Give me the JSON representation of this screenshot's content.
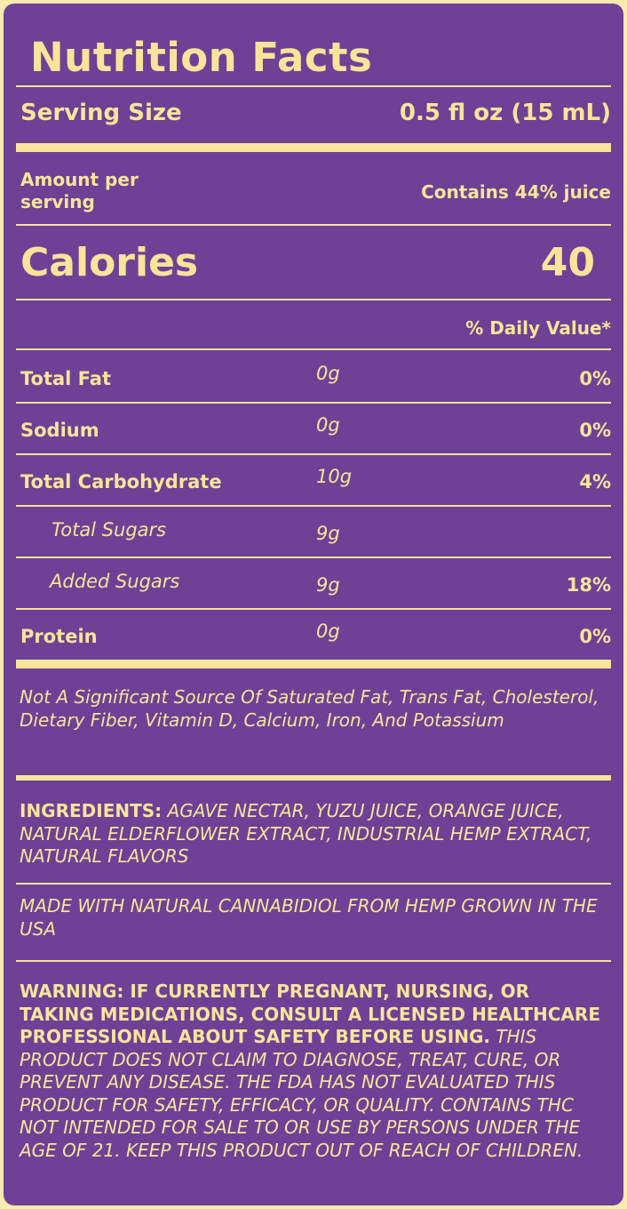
{
  "title": "Nutrition Facts",
  "serving": {
    "label": "Serving Size",
    "value": "0.5 fl oz (15 mL)"
  },
  "amount_per_serving": "Amount per serving",
  "juice": "Contains 44% juice",
  "calories": {
    "label": "Calories",
    "value": "40"
  },
  "daily_value_header": "% Daily Value*",
  "nutrients": [
    {
      "name": "Total Fat",
      "amount": "0g",
      "dv": "0%"
    },
    {
      "name": "Sodium",
      "amount": "0g",
      "dv": "0%"
    },
    {
      "name": "Total Carbohydrate",
      "amount": "10g",
      "dv": "4%"
    },
    {
      "name": "Total Sugars",
      "amount": "9g",
      "dv": ""
    },
    {
      "name": "Added Sugars",
      "amount": "9g",
      "dv": "18%"
    },
    {
      "name": "Protein",
      "amount": "0g",
      "dv": "0%"
    }
  ],
  "not_significant": "Not A Significant Source Of Saturated Fat, Trans Fat, Cholesterol, Dietary Fiber, Vitamin D, Calcium, Iron, And Potassium",
  "ingredients": {
    "label": "INGREDIENTS:",
    "text": "AGAVE NECTAR, YUZU JUICE, ORANGE JUICE, NATURAL ELDERFLOWER EXTRACT, INDUSTRIAL HEMP EXTRACT, NATURAL FLAVORS"
  },
  "made_with": "MADE WITH NATURAL CANNABIDIOL FROM HEMP GROWN IN THE USA",
  "warning": {
    "bold": "WARNING: IF CURRENTLY PREGNANT, NURSING, OR TAKING MEDICATIONS, CONSULT A LICENSED HEALTHCARE PROFESSIONAL ABOUT SAFETY BEFORE USING.",
    "italic": "THIS PRODUCT DOES NOT CLAIM TO DIAGNOSE, TREAT, CURE, OR PREVENT ANY DISEASE. THE FDA HAS NOT EVALUATED THIS PRODUCT FOR SAFETY, EFFICACY, OR QUALITY. CONTAINS THC NOT INTENDED FOR SALE TO OR USE BY PERSONS UNDER THE AGE OF 21. KEEP THIS PRODUCT OUT OF REACH OF CHILDREN."
  },
  "colors": {
    "background": "#6e4196",
    "text": "#f8e59a",
    "border": "#fbeab0"
  }
}
